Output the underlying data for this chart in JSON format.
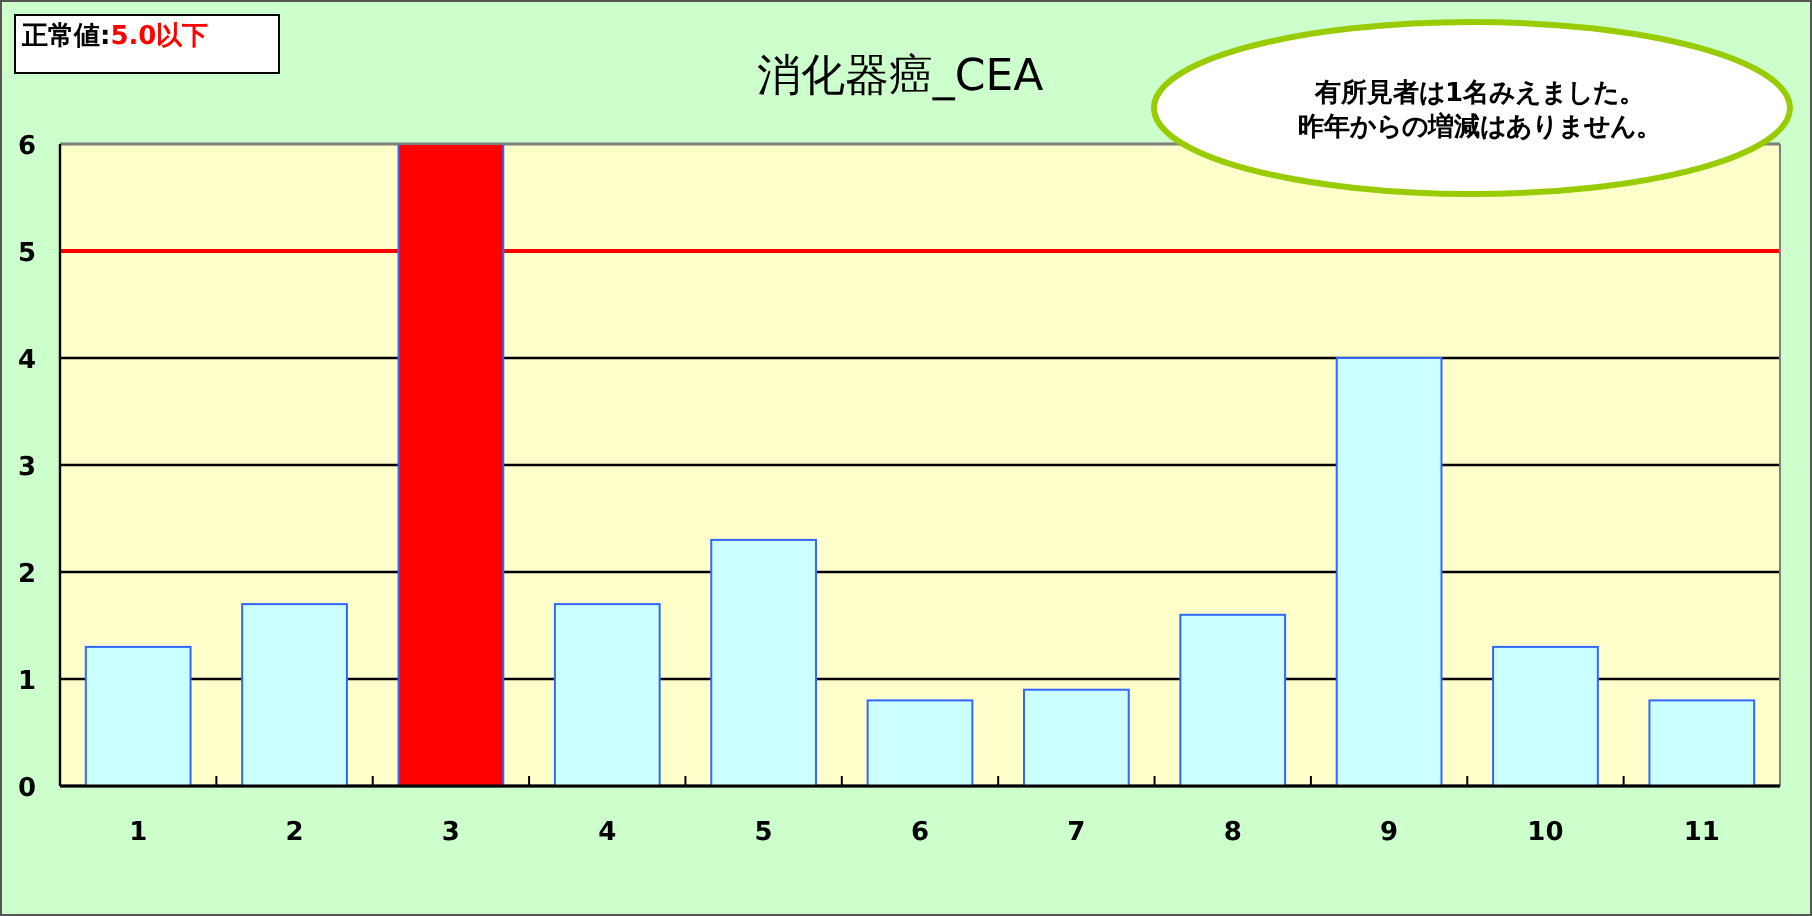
{
  "chart_data": {
    "type": "bar",
    "title": "消化器癌_CEA",
    "categories": [
      "1",
      "2",
      "3",
      "4",
      "5",
      "6",
      "7",
      "8",
      "9",
      "10",
      "11"
    ],
    "values": [
      1.3,
      1.7,
      6,
      1.7,
      2.3,
      0.8,
      0.9,
      1.6,
      4,
      1.3,
      0.8
    ],
    "colors": [
      "#ccffff",
      "#ccffff",
      "#ff0000",
      "#ccffff",
      "#ccffff",
      "#ccffff",
      "#ccffff",
      "#ccffff",
      "#ccffff",
      "#ccffff",
      "#ccffff"
    ],
    "ylim": [
      0,
      6
    ],
    "yticks": [
      0,
      1,
      2,
      3,
      4,
      5,
      6
    ],
    "grid": "y",
    "ref_lines": [
      {
        "axis": "y",
        "value": 5,
        "label": "5.0以下",
        "color": "#ff0000"
      }
    ],
    "annotations": [
      "正常値:",
      "有所見者は1名みえました。",
      "昨年からの増減はありません。"
    ]
  }
}
